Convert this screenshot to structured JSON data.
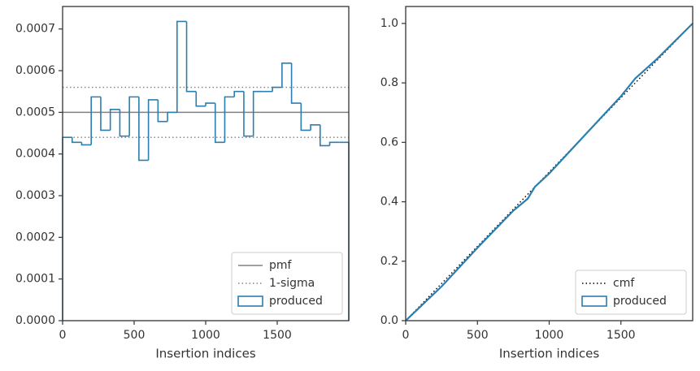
{
  "chart_data": [
    {
      "type": "histogram",
      "xlabel": "Insertion indices",
      "bins": [
        0,
        66.7,
        133.3,
        200,
        266.7,
        333.3,
        400,
        466.7,
        533.3,
        600,
        666.7,
        733.3,
        800,
        866.7,
        933.3,
        1000,
        1066.7,
        1133.3,
        1200,
        1266.7,
        1333.3,
        1400,
        1466.7,
        1533.3,
        1600,
        1666.7,
        1733.3,
        1800,
        1866.7,
        1933.3,
        2000
      ],
      "series": [
        {
          "name": "produced",
          "color": "#2a7fb0",
          "values": [
            0.00044,
            0.000428,
            0.000422,
            0.000537,
            0.000457,
            0.000507,
            0.000443,
            0.000537,
            0.000385,
            0.00053,
            0.000478,
            0.0005,
            0.000718,
            0.00055,
            0.000515,
            0.000522,
            0.000428,
            0.000537,
            0.00055,
            0.000443,
            0.00055,
            0.00055,
            0.00056,
            0.000618,
            0.000522,
            0.000457,
            0.00047,
            0.00042,
            0.000428,
            0.000428
          ]
        }
      ],
      "hlines": [
        {
          "name": "pmf",
          "color": "#808080",
          "style": "solid",
          "values": [
            0.0005
          ]
        },
        {
          "name": "1-sigma",
          "color": "#808080",
          "style": "dotted",
          "values": [
            0.00044,
            0.00056
          ]
        }
      ],
      "xlim": [
        0,
        2000
      ],
      "ylim": [
        0,
        0.000754
      ],
      "xticks": [
        0,
        500,
        1000,
        1500
      ],
      "yticks": [
        {
          "value": 0,
          "label": "0.0000"
        },
        {
          "value": 0.0001,
          "label": "0.0001"
        },
        {
          "value": 0.0002,
          "label": "0.0002"
        },
        {
          "value": 0.0003,
          "label": "0.0003"
        },
        {
          "value": 0.0004,
          "label": "0.0004"
        },
        {
          "value": 0.0005,
          "label": "0.0005"
        },
        {
          "value": 0.0006,
          "label": "0.0006"
        },
        {
          "value": 0.0007,
          "label": "0.0007"
        }
      ],
      "legend": "lower right"
    },
    {
      "type": "line",
      "xlabel": "Insertion indices",
      "series": [
        {
          "name": "cmf",
          "color": "#000000",
          "style": "dotted",
          "x": [
            0,
            2000
          ],
          "values": [
            0,
            1
          ]
        },
        {
          "name": "produced",
          "color": "#2a7fb0",
          "style": "solid",
          "x": [
            0,
            250,
            500,
            750,
            850,
            900,
            1000,
            1250,
            1500,
            1600,
            1750,
            2000
          ],
          "values": [
            0,
            0.115,
            0.245,
            0.37,
            0.41,
            0.45,
            0.495,
            0.625,
            0.755,
            0.815,
            0.88,
            1.0
          ]
        }
      ],
      "xlim": [
        0,
        2000
      ],
      "ylim": [
        0,
        1.057
      ],
      "xticks": [
        0,
        500,
        1000,
        1500
      ],
      "yticks": [
        {
          "value": 0,
          "label": "0.0"
        },
        {
          "value": 0.2,
          "label": "0.2"
        },
        {
          "value": 0.4,
          "label": "0.4"
        },
        {
          "value": 0.6,
          "label": "0.6"
        },
        {
          "value": 0.8,
          "label": "0.8"
        },
        {
          "value": 1.0,
          "label": "1.0"
        }
      ],
      "legend": "lower right"
    }
  ]
}
